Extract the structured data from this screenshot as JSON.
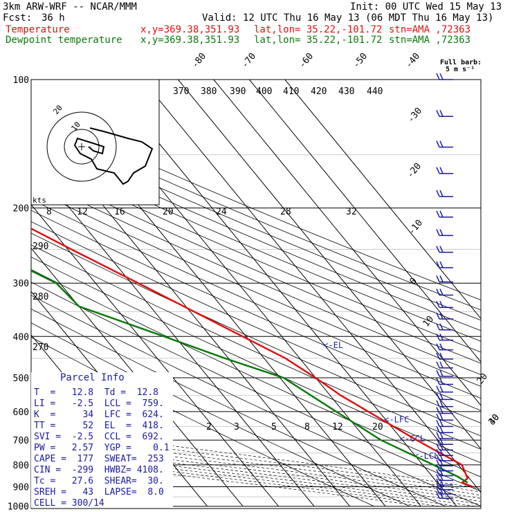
{
  "header": {
    "model": "3km ARW-WRF -- NCAR/MMM",
    "init": "Init: 00 UTC Wed 15 May 13",
    "fcst_label": "Fcst:",
    "fcst_value": "36 h",
    "valid": "Valid: 12 UTC Thu 16 May 13 (06 MDT Thu 16 May 13)",
    "temp_label": "Temperature",
    "dew_label": "Dewpoint temperature",
    "xy": "x,y=369.38,351.93",
    "latlon": "lat,lon= 35.22,-101.72",
    "stn": "stn=AMA ,72363"
  },
  "barb_legend": {
    "line1": "Full barb:",
    "line2": "5 m s⁻¹"
  },
  "chart_data": {
    "type": "line",
    "subtype": "skew-T log-P sounding",
    "y_axis": "pressure (hPa)",
    "pressure_ticks": [
      100,
      200,
      300,
      400,
      500,
      600,
      700,
      800,
      900,
      1000
    ],
    "isotherm_labels": [
      "-80",
      "-70",
      "-60",
      "-50",
      "-40",
      "-30",
      "-20",
      "-10",
      "0",
      "10",
      "20",
      "30",
      "40"
    ],
    "theta_labels": [
      "370",
      "380",
      "390",
      "400",
      "410",
      "420",
      "430",
      "440"
    ],
    "dry_adiabat_labels": [
      "290",
      "280",
      "270"
    ],
    "mixing_ratio_labels": [
      "2",
      "3",
      "5",
      "8",
      "12",
      "20"
    ],
    "hodograph": {
      "units": "kts",
      "rings": [
        "10",
        "20"
      ],
      "speed_ticks": [
        "8",
        "12",
        "16",
        "20",
        "24",
        "28",
        "32"
      ]
    },
    "levels": [
      {
        "label": "<-EL",
        "p": 418
      },
      {
        "label": "<-LFC",
        "p": 624
      },
      {
        "label": "<-CCL",
        "p": 692
      },
      {
        "label": "<-LCL",
        "p": 759
      }
    ],
    "series": [
      {
        "name": "Temperature",
        "color": "#e01010",
        "points": [
          [
            100,
            -56
          ],
          [
            140,
            -59
          ],
          [
            180,
            -66
          ],
          [
            200,
            -62
          ],
          [
            250,
            -49
          ],
          [
            300,
            -38
          ],
          [
            400,
            -21
          ],
          [
            450,
            -14
          ],
          [
            500,
            -10
          ],
          [
            550,
            -7
          ],
          [
            600,
            -3
          ],
          [
            700,
            4
          ],
          [
            800,
            11
          ],
          [
            860,
            9.5
          ],
          [
            880,
            7
          ],
          [
            900,
            9
          ]
        ]
      },
      {
        "name": "Dewpoint temperature",
        "color": "#0a7a0a",
        "points": [
          [
            100,
            -100
          ],
          [
            120,
            -95
          ],
          [
            160,
            -85
          ],
          [
            180,
            -82
          ],
          [
            200,
            -72
          ],
          [
            260,
            -70
          ],
          [
            300,
            -61
          ],
          [
            340,
            -60
          ],
          [
            400,
            -43
          ],
          [
            450,
            -31
          ],
          [
            500,
            -19
          ],
          [
            600,
            -12
          ],
          [
            700,
            -6
          ],
          [
            800,
            3
          ],
          [
            850,
            7
          ],
          [
            880,
            8.5
          ]
        ]
      }
    ],
    "wind_barbs": {
      "panel": "right",
      "count": 40
    }
  },
  "parcel_info": {
    "title": "Parcel Info",
    "rows": [
      "T  =   12.8  Td =  12.8",
      "LI =   -2.5  LCL =  759.",
      "K  =     34  LFC =  624.",
      "TT =     52  EL  =  418.",
      "SVI =  -2.5  CCL =  692.",
      "PW =   2.57  YGP =    0.1",
      "CAPE =  177  SWEAT=  253",
      "CIN =  -299  HWBZ= 4108.",
      "Tc =   27.6  SHEAR=  30.",
      "SREH =   43  LAPSE=  8.0",
      "CELL = 300/14"
    ]
  }
}
